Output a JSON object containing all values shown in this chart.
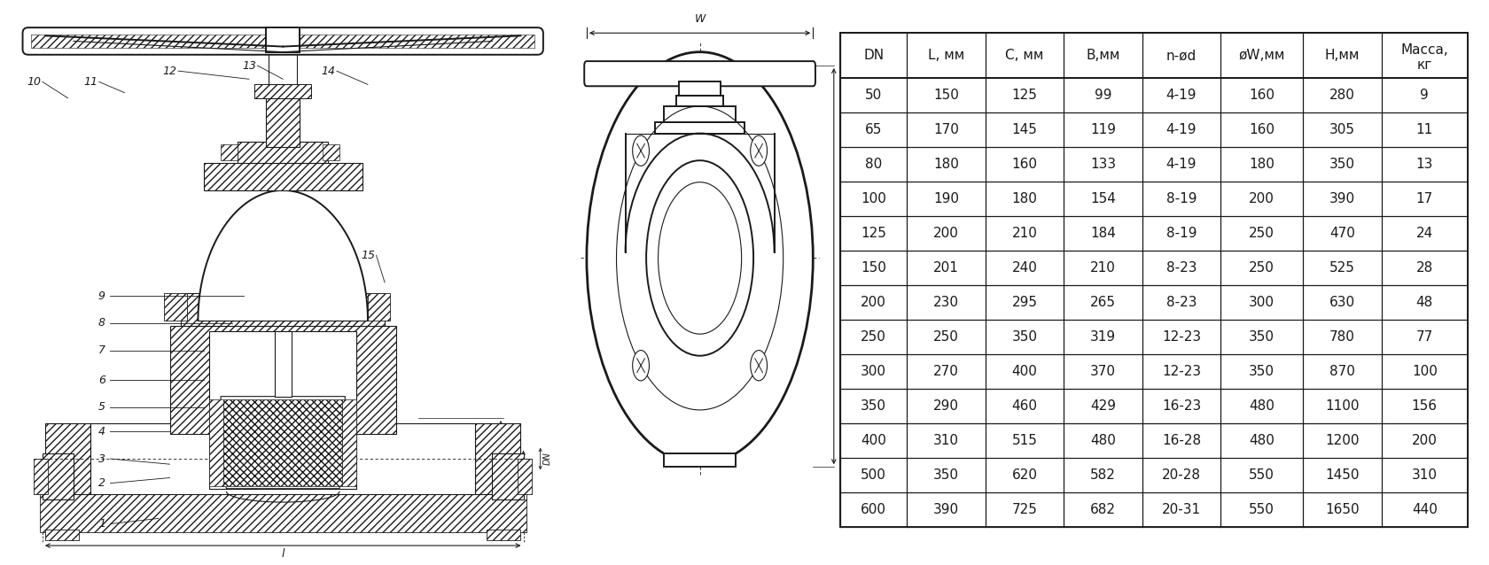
{
  "bg_color": "#ffffff",
  "line_color": "#1a1a1a",
  "table_line_color": "#1a1a1a",
  "table_headers_line1": [
    "DN",
    "L, мм",
    "С, мм",
    "В,мм",
    "n-ød",
    "øW,мм",
    "Н,мм",
    "Масса,"
  ],
  "table_headers_line2": [
    "",
    "",
    "",
    "",
    "",
    "",
    "",
    "кг"
  ],
  "table_data": [
    [
      "50",
      "150",
      "125",
      "99",
      "4-19",
      "160",
      "280",
      "9"
    ],
    [
      "65",
      "170",
      "145",
      "119",
      "4-19",
      "160",
      "305",
      "11"
    ],
    [
      "80",
      "180",
      "160",
      "133",
      "4-19",
      "180",
      "350",
      "13"
    ],
    [
      "100",
      "190",
      "180",
      "154",
      "8-19",
      "200",
      "390",
      "17"
    ],
    [
      "125",
      "200",
      "210",
      "184",
      "8-19",
      "250",
      "470",
      "24"
    ],
    [
      "150",
      "201",
      "240",
      "210",
      "8-23",
      "250",
      "525",
      "28"
    ],
    [
      "200",
      "230",
      "295",
      "265",
      "8-23",
      "300",
      "630",
      "48"
    ],
    [
      "250",
      "250",
      "350",
      "319",
      "12-23",
      "350",
      "780",
      "77"
    ],
    [
      "300",
      "270",
      "400",
      "370",
      "12-23",
      "350",
      "870",
      "100"
    ],
    [
      "350",
      "290",
      "460",
      "429",
      "16-23",
      "480",
      "1100",
      "156"
    ],
    [
      "400",
      "310",
      "515",
      "480",
      "16-28",
      "480",
      "1200",
      "200"
    ],
    [
      "500",
      "350",
      "620",
      "582",
      "20-28",
      "550",
      "1450",
      "310"
    ],
    [
      "600",
      "390",
      "725",
      "682",
      "20-31",
      "550",
      "1650",
      "440"
    ]
  ],
  "font_size_table": 11,
  "font_size_label": 9,
  "font_size_dim": 9,
  "lw_main": 1.4,
  "lw_thin": 0.8,
  "lw_thick": 2.0,
  "lw_hatch": 0.5
}
